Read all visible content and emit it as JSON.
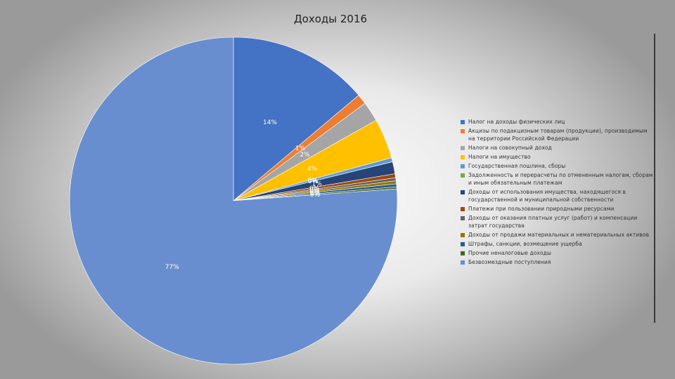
{
  "chart_data": {
    "type": "pie",
    "title": "Доходы 2016",
    "legend_position": "right",
    "slices": [
      {
        "name": "Налог на доходы физических лиц",
        "value": 14,
        "label": "14%",
        "color": "#4472C4"
      },
      {
        "name": "Акцизы по подакцизным товарам (продукции), производимым на территории Российской Федерации",
        "value": 1,
        "label": "1%",
        "color": "#ED7D31"
      },
      {
        "name": "Налоги на совокупный доход",
        "value": 2,
        "label": "2%",
        "color": "#A5A5A5"
      },
      {
        "name": "Налоги на имущество",
        "value": 4,
        "label": "4%",
        "color": "#FFC000"
      },
      {
        "name": "Государственная пошлина, сборы",
        "value": 0.4,
        "label": "0%",
        "color": "#5B9BD5"
      },
      {
        "name": "Задолженность и перерасчеты по отмененным налогам, сборам и иным обязательным платежам",
        "value": 0.01,
        "label": "0%",
        "color": "#70AD47"
      },
      {
        "name": "Доходы от использования имущества, находящегося в государственной и муниципальной собственности",
        "value": 1.2,
        "label": "1%",
        "color": "#264478"
      },
      {
        "name": "Платежи при пользовании природными ресурсами",
        "value": 0.4,
        "label": "0%",
        "color": "#9E480E"
      },
      {
        "name": "Доходы от оказания платных услуг (работ) и компенсации затрат государства",
        "value": 0.3,
        "label": "0%",
        "color": "#636363"
      },
      {
        "name": "Доходы от продажи материальных и нематериальных активов",
        "value": 0.3,
        "label": "0%",
        "color": "#997300"
      },
      {
        "name": "Штрафы, санкции, возмещение ущерба",
        "value": 0.3,
        "label": "0%",
        "color": "#255E91"
      },
      {
        "name": "Прочие неналоговые доходы",
        "value": 0.2,
        "label": "0%",
        "color": "#43682B"
      },
      {
        "name": "Безвозмездные поступления",
        "value": 77,
        "label": "77%",
        "color": "#698ED0"
      }
    ]
  }
}
